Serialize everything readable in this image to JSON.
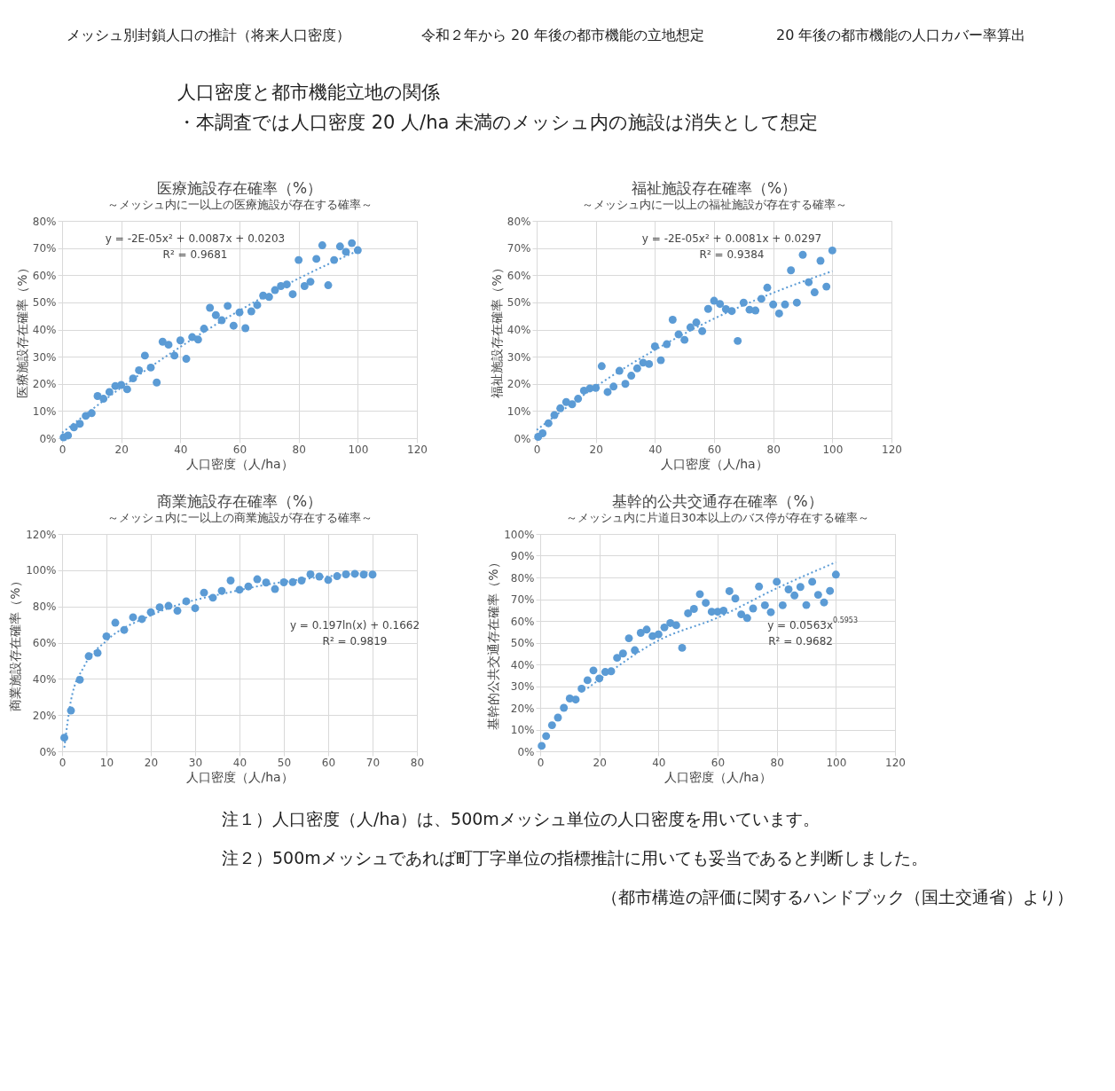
{
  "chart_data": [
    {
      "type": "other",
      "annotations": [
        "メッシュ別封鎖人口の推計（将来人口密度）",
        "令和２年から 20 年後の都市機能の立地想定",
        "20 年後の都市機能の人口カバー率算出",
        "人口密度と都市機能立地の関係",
        "・本調査では人口密度 20 人/ha 未満のメッシュ内の施設は消失として想定"
      ]
    },
    {
      "type": "scatter",
      "title": "医療施設存在確率（%）",
      "subtitle": "～メッシュ内に一以上の医療施設が存在する確率～",
      "xlabel": "人口密度（人/ha）",
      "ylabel": "医療施設存在確率（%）",
      "grid": true,
      "legend": false,
      "marker": "circle",
      "xlim": [
        0,
        120
      ],
      "xticks": [
        0,
        20,
        40,
        60,
        80,
        100,
        120
      ],
      "ylim": [
        0,
        80
      ],
      "yticks": [
        {
          "value": 0,
          "label": "0%"
        },
        {
          "value": 10,
          "label": "10%"
        },
        {
          "value": 20,
          "label": "20%"
        },
        {
          "value": 30,
          "label": "30%"
        },
        {
          "value": 40,
          "label": "40%"
        },
        {
          "value": 50,
          "label": "50%"
        },
        {
          "value": 60,
          "label": "60%"
        },
        {
          "value": 70,
          "label": "70%"
        },
        {
          "value": 80,
          "label": "80%"
        }
      ],
      "annotations": [
        "y = -2E-05x² + 0.0087x + 0.0203",
        "R² = 0.9681"
      ],
      "series": [
        {
          "color": "#5b9bd5",
          "x": [
            0.5,
            2,
            4,
            6,
            8,
            10,
            12,
            14,
            16,
            18,
            20,
            22,
            24,
            26,
            28,
            30,
            32,
            34,
            36,
            38,
            40,
            42,
            44,
            46,
            48,
            50,
            52,
            54,
            56,
            58,
            60,
            62,
            64,
            66,
            68,
            70,
            72,
            74,
            76,
            78,
            80,
            82,
            84,
            86,
            88,
            90,
            92,
            94,
            96,
            98,
            100
          ],
          "values": [
            0.3,
            1,
            4,
            5.3,
            8.2,
            9.2,
            15.5,
            14.5,
            17,
            19.2,
            19.6,
            18,
            22,
            25,
            30.4,
            26,
            20.5,
            35.5,
            34.4,
            30.4,
            36,
            29.2,
            37.2,
            36.3,
            40.3,
            48,
            45.3,
            43.4,
            48.7,
            41.4,
            46.3,
            40.5,
            46.7,
            49,
            52.5,
            52,
            54.5,
            56,
            56.6,
            53,
            65.6,
            56,
            57.6,
            66,
            71,
            56.3,
            65.6,
            70.6,
            68.6,
            71.8,
            69.2
          ]
        },
        {
          "type": "line",
          "marker": "none",
          "line_style": "dotted",
          "color": "#5b9bd5",
          "x": [
            0,
            20,
            40,
            60,
            80,
            100
          ],
          "values": [
            2,
            18.6,
            33.6,
            47,
            58.8,
            69
          ]
        }
      ]
    },
    {
      "type": "scatter",
      "title": "福祉施設存在確率（%）",
      "subtitle": "～メッシュ内に一以上の福祉施設が存在する確率～",
      "xlabel": "人口密度（人/ha）",
      "ylabel": "福祉施設存在確率（%）",
      "grid": true,
      "legend": false,
      "marker": "circle",
      "xlim": [
        0,
        120
      ],
      "xticks": [
        0,
        20,
        40,
        60,
        80,
        100,
        120
      ],
      "ylim": [
        0,
        80
      ],
      "yticks": [
        {
          "value": 0,
          "label": "0%"
        },
        {
          "value": 10,
          "label": "10%"
        },
        {
          "value": 20,
          "label": "20%"
        },
        {
          "value": 30,
          "label": "30%"
        },
        {
          "value": 40,
          "label": "40%"
        },
        {
          "value": 50,
          "label": "50%"
        },
        {
          "value": 60,
          "label": "60%"
        },
        {
          "value": 70,
          "label": "70%"
        },
        {
          "value": 80,
          "label": "80%"
        }
      ],
      "annotations": [
        "y = -2E-05x² + 0.0081x + 0.0297",
        "R² = 0.9384"
      ],
      "series": [
        {
          "color": "#5b9bd5",
          "x": [
            0.5,
            2,
            4,
            6,
            8,
            10,
            12,
            14,
            16,
            18,
            20,
            22,
            24,
            26,
            28,
            30,
            32,
            34,
            36,
            38,
            40,
            42,
            44,
            46,
            48,
            50,
            52,
            54,
            56,
            58,
            60,
            62,
            64,
            66,
            68,
            70,
            72,
            74,
            76,
            78,
            80,
            82,
            84,
            86,
            88,
            90,
            92,
            94,
            96,
            98,
            100
          ],
          "values": [
            0.5,
            1.8,
            5.5,
            8.5,
            11,
            13.3,
            12.5,
            14.5,
            17.5,
            18.3,
            18.5,
            26.5,
            17,
            19,
            24.8,
            20,
            23,
            25.7,
            27.8,
            27.3,
            33.8,
            28.7,
            34.6,
            43.6,
            38.2,
            36.2,
            40.8,
            42.6,
            39.4,
            47.6,
            50.6,
            49.4,
            47.5,
            46.8,
            35.8,
            49.9,
            47.3,
            47,
            51.3,
            55.4,
            49.2,
            45.9,
            49.2,
            61.8,
            49.9,
            67.5,
            57.4,
            53.7,
            65.3,
            55.8,
            69.1
          ]
        },
        {
          "type": "line",
          "marker": "none",
          "line_style": "dotted",
          "color": "#5b9bd5",
          "x": [
            0,
            20,
            40,
            60,
            80,
            100
          ],
          "values": [
            3,
            19,
            32.5,
            44,
            53.5,
            61.5
          ]
        }
      ]
    },
    {
      "type": "scatter",
      "title": "商業施設存在確率（%）",
      "subtitle": "～メッシュ内に一以上の商業施設が存在する確率～",
      "xlabel": "人口密度（人/ha）",
      "ylabel": "商業施設存在確率（%）",
      "grid": true,
      "legend": false,
      "marker": "circle",
      "xlim": [
        0,
        80
      ],
      "xticks": [
        0,
        10,
        20,
        30,
        40,
        50,
        60,
        70,
        80
      ],
      "ylim": [
        0,
        120
      ],
      "yticks": [
        {
          "value": 0,
          "label": "0%"
        },
        {
          "value": 20,
          "label": "20%"
        },
        {
          "value": 40,
          "label": "40%"
        },
        {
          "value": 60,
          "label": "60%"
        },
        {
          "value": 80,
          "label": "80%"
        },
        {
          "value": 100,
          "label": "100%"
        },
        {
          "value": 120,
          "label": "120%"
        }
      ],
      "annotations": [
        "y = 0.197ln(x) + 0.1662",
        "R² = 0.9819"
      ],
      "series": [
        {
          "color": "#5b9bd5",
          "x": [
            0.5,
            2,
            4,
            6,
            8,
            10,
            12,
            14,
            16,
            18,
            20,
            22,
            24,
            26,
            28,
            30,
            32,
            34,
            36,
            38,
            40,
            42,
            44,
            46,
            48,
            50,
            52,
            54,
            56,
            58,
            60,
            62,
            64,
            66,
            68,
            70
          ],
          "values": [
            7.5,
            22.5,
            39.5,
            52.5,
            54.3,
            63.5,
            71,
            67,
            74,
            73,
            76.8,
            79.5,
            80.3,
            77.6,
            82.8,
            79,
            87.6,
            84.8,
            88.6,
            94.3,
            89.2,
            91,
            95,
            93.2,
            89.6,
            93.3,
            93.4,
            94.3,
            97.7,
            96.5,
            94.6,
            96.7,
            97.7,
            98,
            97.6,
            97.6
          ]
        },
        {
          "type": "line",
          "marker": "none",
          "line_style": "dotted",
          "color": "#5b9bd5",
          "x": [
            0.5,
            2,
            5,
            10,
            20,
            40,
            70
          ],
          "values": [
            2,
            28,
            47,
            61,
            75,
            89,
            99
          ]
        }
      ]
    },
    {
      "type": "scatter",
      "title": "基幹的公共交通存在確率（%）",
      "subtitle": "～メッシュ内に片道日30本以上のバス停が存在する確率～",
      "xlabel": "人口密度（人/ha）",
      "ylabel": "基幹的公共交通存在確率（%）",
      "grid": true,
      "legend": false,
      "marker": "circle",
      "xlim": [
        0,
        120
      ],
      "xticks": [
        0,
        20,
        40,
        60,
        80,
        100,
        120
      ],
      "ylim": [
        0,
        100
      ],
      "yticks": [
        {
          "value": 0,
          "label": "0%"
        },
        {
          "value": 10,
          "label": "10%"
        },
        {
          "value": 20,
          "label": "20%"
        },
        {
          "value": 30,
          "label": "30%"
        },
        {
          "value": 40,
          "label": "40%"
        },
        {
          "value": 50,
          "label": "50%"
        },
        {
          "value": 60,
          "label": "60%"
        },
        {
          "value": 70,
          "label": "70%"
        },
        {
          "value": 80,
          "label": "80%"
        },
        {
          "value": 90,
          "label": "90%"
        },
        {
          "value": 100,
          "label": "100%"
        }
      ],
      "annotations": [
        "y = 0.0563x$^{0.5953}$",
        "R² = 0.9682"
      ],
      "series": [
        {
          "color": "#5b9bd5",
          "x": [
            0.5,
            2,
            4,
            6,
            8,
            10,
            12,
            14,
            16,
            18,
            20,
            22,
            24,
            26,
            28,
            30,
            32,
            34,
            36,
            38,
            40,
            42,
            44,
            46,
            48,
            50,
            52,
            54,
            56,
            58,
            60,
            62,
            64,
            66,
            68,
            70,
            72,
            74,
            76,
            78,
            80,
            82,
            84,
            86,
            88,
            90,
            92,
            94,
            96,
            98,
            100
          ],
          "values": [
            2.5,
            7,
            12,
            15.5,
            20,
            24.3,
            23.8,
            28.8,
            32.7,
            37.2,
            33.5,
            36.5,
            36.8,
            43,
            45,
            52,
            46.5,
            54.5,
            56,
            53,
            53.8,
            57,
            59,
            58,
            47.6,
            63.5,
            65.5,
            72.3,
            68.3,
            64.2,
            64.2,
            64.7,
            73.7,
            70.3,
            63,
            61.3,
            65.7,
            75.8,
            67.2,
            64,
            78,
            67.2,
            74.5,
            71.7,
            75.6,
            67.3,
            78,
            72,
            68.5,
            73.8,
            81.3
          ]
        },
        {
          "type": "line",
          "marker": "none",
          "line_style": "dotted",
          "color": "#5b9bd5",
          "x": [
            16,
            20,
            40,
            60,
            80,
            100
          ],
          "values": [
            29,
            33,
            51,
            61.5,
            75,
            87
          ]
        }
      ]
    },
    {
      "type": "other",
      "annotations": [
        "注１）人口密度（人/ha）は、500mメッシュ単位の人口密度を用いています。",
        "注２）500mメッシュであれば町丁字単位の指標推計に用いても妥当であると判断しました。",
        "（都市構造の評価に関するハンドブック（国土交通省）より）"
      ]
    }
  ]
}
